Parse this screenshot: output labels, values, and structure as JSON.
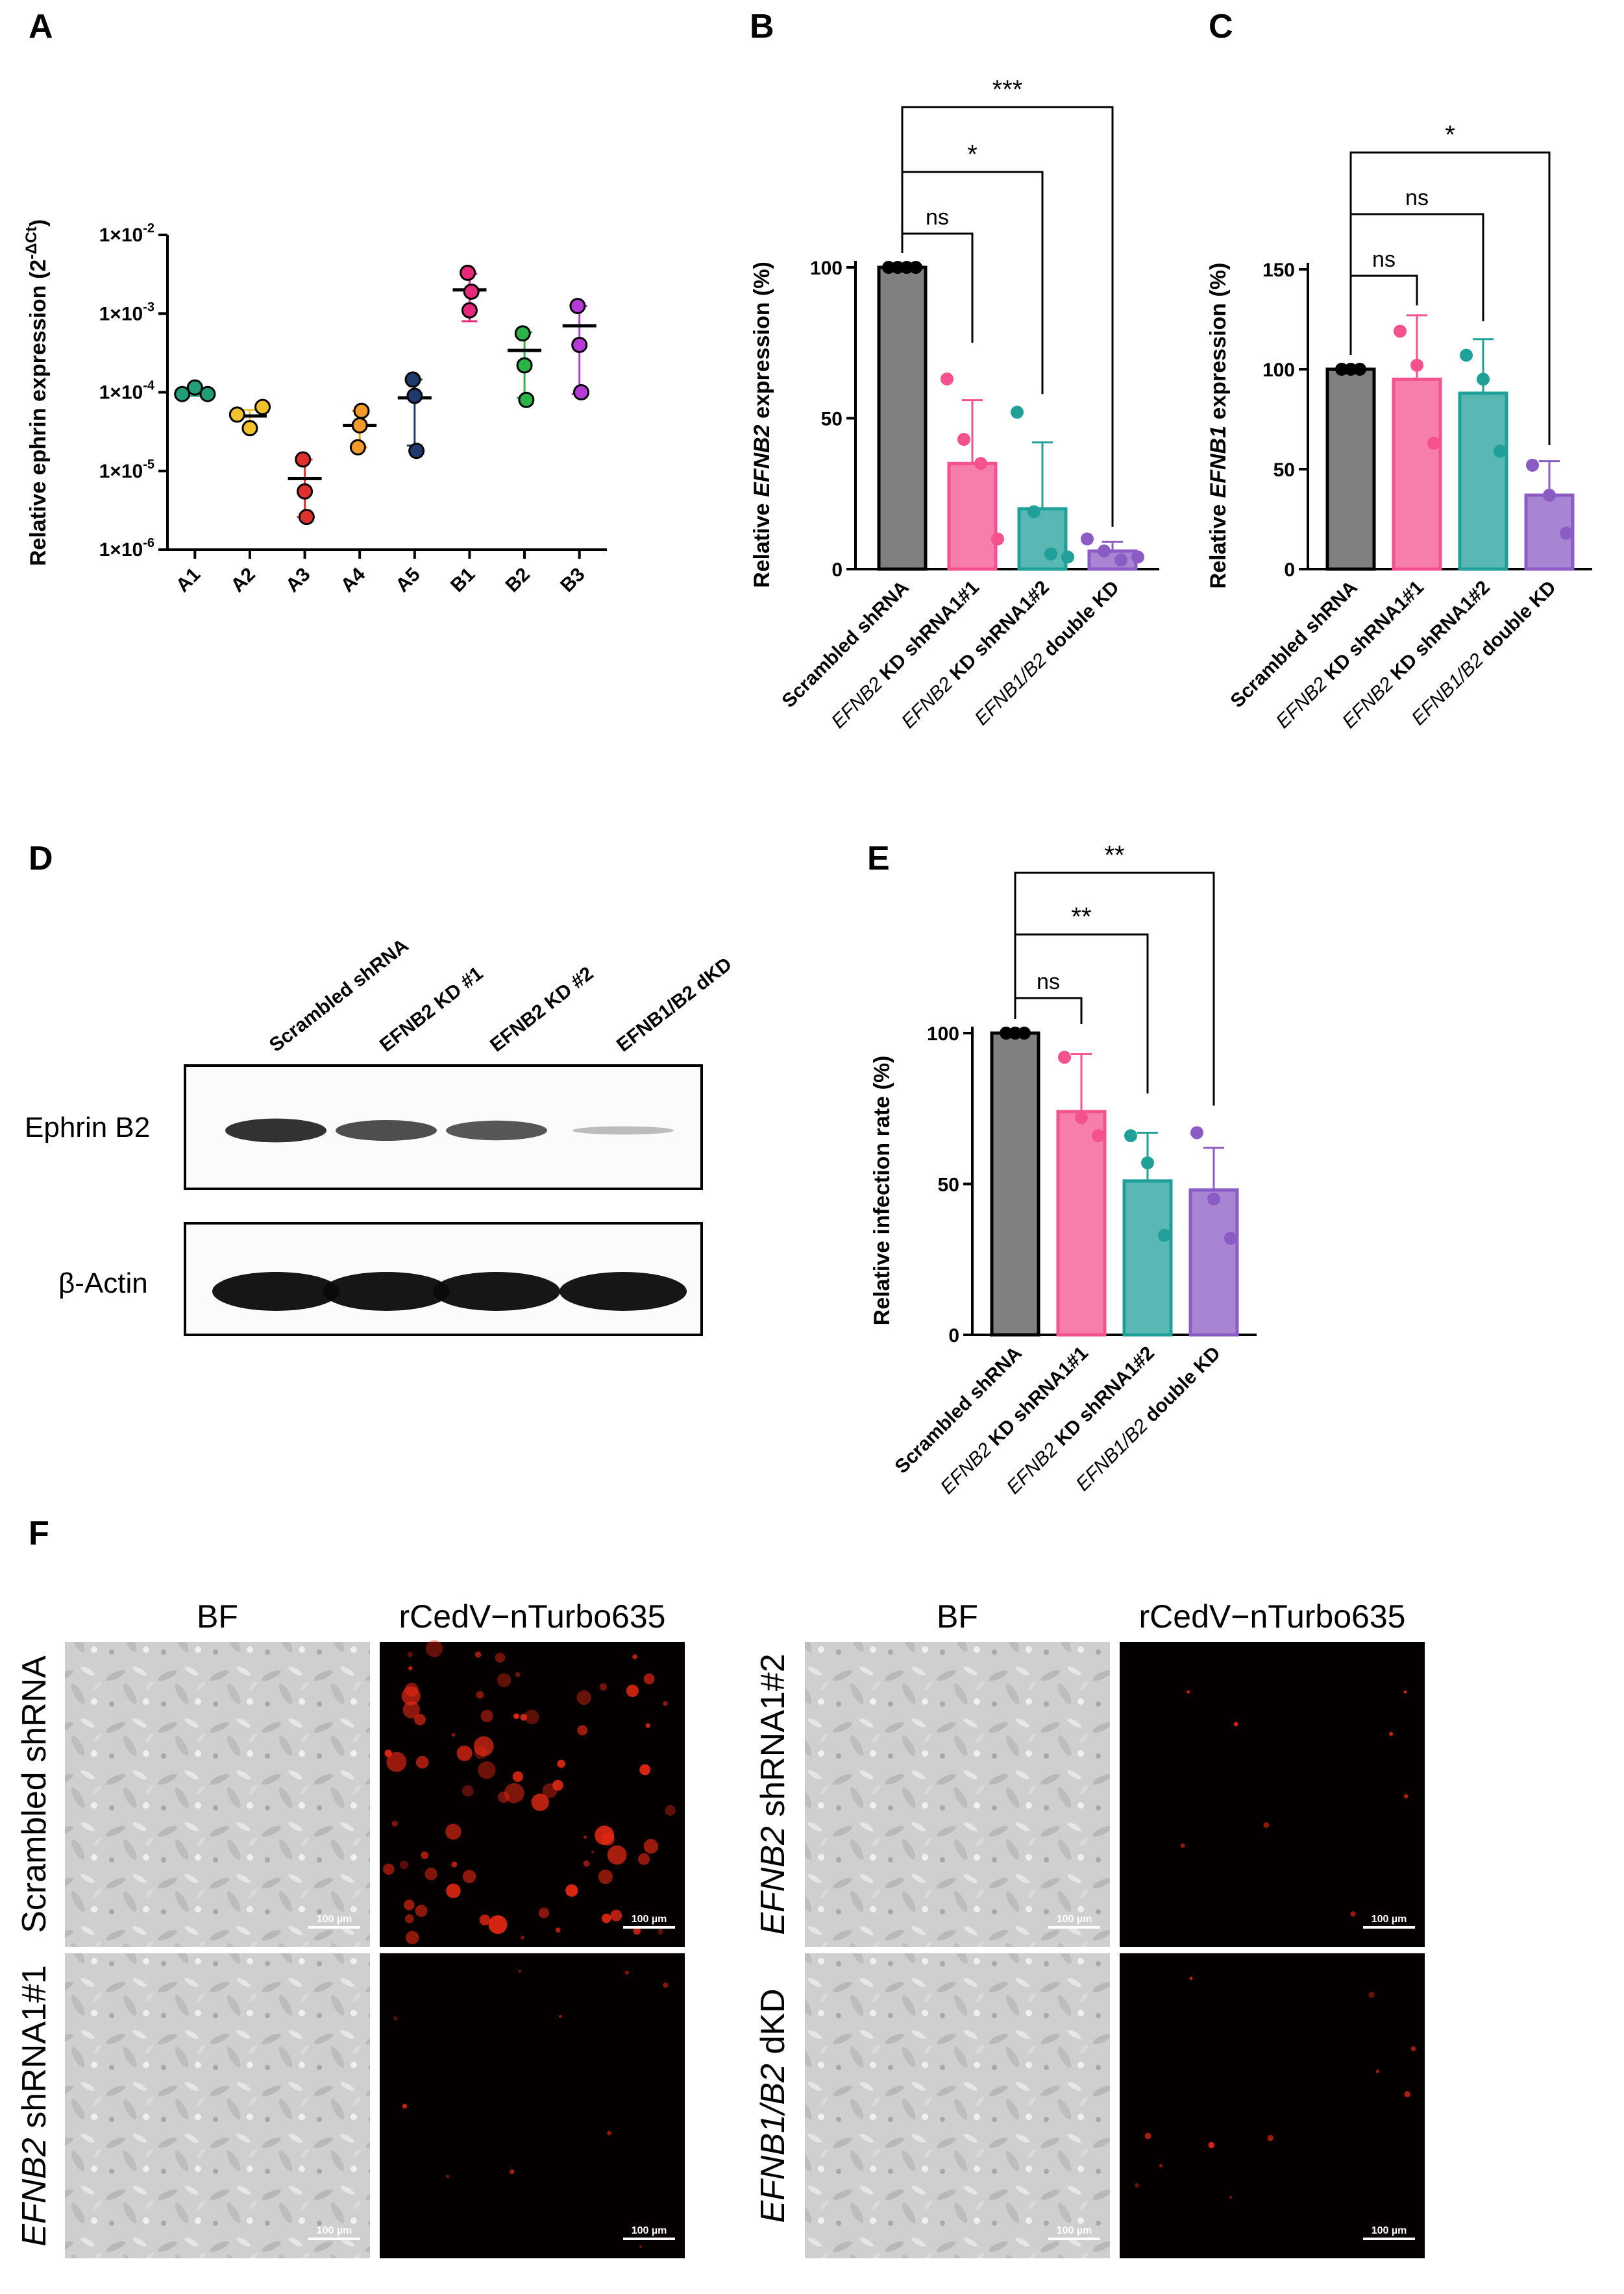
{
  "panels": {
    "A": "A",
    "B": "B",
    "C": "C",
    "D": "D",
    "E": "E",
    "F": "F"
  },
  "chart_data": [
    {
      "panel": "A",
      "type": "scatter",
      "ylabel_main": "Relative ephrin expression (2",
      "ylabel_sup": "-ΔCt",
      "ylabel_end": ")",
      "yscale": "log",
      "ylim": [
        1e-06,
        0.01
      ],
      "ytick_values": [
        1e-06,
        1e-05,
        0.0001,
        0.001,
        0.01
      ],
      "ytick_bases": [
        "1×10",
        "1×10",
        "1×10",
        "1×10",
        "1×10"
      ],
      "ytick_exps": [
        "-6",
        "-5",
        "-4",
        "-3",
        "-2"
      ],
      "categories": [
        "A1",
        "A2",
        "A3",
        "A4",
        "A5",
        "B1",
        "B2",
        "B3"
      ],
      "colors": [
        "#1f9e77",
        "#f2c12e",
        "#e0312f",
        "#f39a2c",
        "#1f3b6e",
        "#e7287a",
        "#2bb34a",
        "#b43bd6"
      ],
      "points": [
        [
          9.5e-05,
          0.000115,
          9.5e-05
        ],
        [
          5.2e-05,
          3.5e-05,
          6.5e-05
        ],
        [
          1.4e-05,
          5.5e-06,
          2.6e-06
        ],
        [
          2e-05,
          3.8e-05,
          5.8e-05
        ],
        [
          0.000145,
          9e-05,
          1.8e-05
        ],
        [
          0.0033,
          0.0011,
          0.0019
        ],
        [
          0.00056,
          0.00022,
          8e-05
        ],
        [
          0.00125,
          0.0004,
          0.0001
        ]
      ],
      "means": [
        0.0001,
        5e-05,
        8e-06,
        3.8e-05,
        8.5e-05,
        0.002,
        0.00034,
        0.0007
      ],
      "sd_low": [
        9e-05,
        3.2e-05,
        2.6e-06,
        2e-05,
        2.1e-05,
        0.0008,
        8.5e-05,
        9.5e-05
      ],
      "sd_high": [
        0.000115,
        6e-05,
        1.4e-05,
        5.8e-05,
        0.000145,
        0.0032,
        0.00058,
        0.00125
      ]
    },
    {
      "panel": "B",
      "type": "bar",
      "ylabel_pre": "Relative ",
      "ylabel_it": "EFNB2",
      "ylabel_post": " expression (%)",
      "ylim": [
        0,
        100
      ],
      "yticks": [
        "0",
        "50",
        "100"
      ],
      "categories": [
        {
          "it": "",
          "rest": "Scrambled shRNA"
        },
        {
          "it": "EFNB2",
          "rest": " KD shRNA1#1"
        },
        {
          "it": "EFNB2",
          "rest": " KD shRNA1#2"
        },
        {
          "it": "EFNB1/B2",
          "rest": " double KD"
        }
      ],
      "colors": [
        "#7f7f7f",
        "#f4518f",
        "#21a09a",
        "#8a5cc4"
      ],
      "values": [
        100,
        35,
        20,
        6
      ],
      "sd": [
        0,
        21,
        22,
        3
      ],
      "points": [
        [
          100,
          100,
          100,
          100
        ],
        [
          63,
          43,
          35,
          10
        ],
        [
          52,
          19,
          5,
          4
        ],
        [
          10,
          6,
          3,
          4
        ]
      ],
      "comparisons": [
        {
          "to": 1,
          "label": "ns"
        },
        {
          "to": 2,
          "label": "*"
        },
        {
          "to": 3,
          "label": "***"
        }
      ]
    },
    {
      "panel": "C",
      "type": "bar",
      "ylabel_pre": "Relative ",
      "ylabel_it": "EFNB1",
      "ylabel_post": " expression (%)",
      "ylim": [
        0,
        150
      ],
      "yticks": [
        "0",
        "50",
        "100",
        "150"
      ],
      "categories": [
        {
          "it": "",
          "rest": "Scrambled shRNA"
        },
        {
          "it": "EFNB2",
          "rest": " KD shRNA1#1"
        },
        {
          "it": "EFNB2",
          "rest": " KD shRNA1#2"
        },
        {
          "it": "EFNB1/B2",
          "rest": " double KD"
        }
      ],
      "colors": [
        "#7f7f7f",
        "#f4518f",
        "#21a09a",
        "#8a5cc4"
      ],
      "values": [
        100,
        95,
        88,
        37
      ],
      "sd": [
        0,
        32,
        27,
        17
      ],
      "points": [
        [
          100,
          100,
          100
        ],
        [
          119,
          102,
          63
        ],
        [
          107,
          95,
          59
        ],
        [
          52,
          37,
          18
        ]
      ],
      "comparisons": [
        {
          "to": 1,
          "label": "ns"
        },
        {
          "to": 2,
          "label": "ns"
        },
        {
          "to": 3,
          "label": "*"
        }
      ]
    },
    {
      "panel": "E",
      "type": "bar",
      "ylabel_pre": "Relative infection rate (%)",
      "ylabel_it": "",
      "ylabel_post": "",
      "ylim": [
        0,
        100
      ],
      "yticks": [
        "0",
        "50",
        "100"
      ],
      "categories": [
        {
          "it": "",
          "rest": "Scrambled shRNA"
        },
        {
          "it": "EFNB2",
          "rest": " KD shRNA1#1"
        },
        {
          "it": "EFNB2",
          "rest": " KD shRNA1#2"
        },
        {
          "it": "EFNB1/B2",
          "rest": " double KD"
        }
      ],
      "colors": [
        "#7f7f7f",
        "#f4518f",
        "#21a09a",
        "#8a5cc4"
      ],
      "values": [
        100,
        74,
        51,
        48
      ],
      "sd": [
        0,
        19,
        16,
        14
      ],
      "points": [
        [
          100,
          100,
          100
        ],
        [
          92,
          72,
          66
        ],
        [
          66,
          57,
          33
        ],
        [
          67,
          45,
          32
        ]
      ],
      "comparisons": [
        {
          "to": 1,
          "label": "ns"
        },
        {
          "to": 2,
          "label": "**"
        },
        {
          "to": 3,
          "label": "**"
        }
      ]
    }
  ],
  "western_blot": {
    "lanes": [
      "Scrambled shRNA",
      "EFNB2 KD #1",
      "EFNB2 KD #2",
      "EFNB1/B2 dKD"
    ],
    "row1": "Ephrin B2",
    "row2": "β-Actin",
    "band_intensity_ephrin": [
      0.9,
      0.75,
      0.7,
      0.15
    ],
    "band_intensity_actin": [
      1,
      1,
      1,
      1
    ]
  },
  "microscopy": {
    "col_bf": "BF",
    "col_fluor": "rCedV−nTurbo635",
    "scale_bar": "100 µm",
    "rows_left": [
      {
        "it": "",
        "rest": "Scrambled shRNA",
        "fluor_level": 1.0
      },
      {
        "it": "EFNB2",
        "rest": " shRNA1#1",
        "fluor_level": 0.08
      }
    ],
    "rows_right": [
      {
        "it": "EFNB2",
        "rest": " shRNA1#2",
        "fluor_level": 0.06
      },
      {
        "it": "EFNB1/B2",
        "rest": " dKD",
        "fluor_level": 0.1
      }
    ]
  }
}
